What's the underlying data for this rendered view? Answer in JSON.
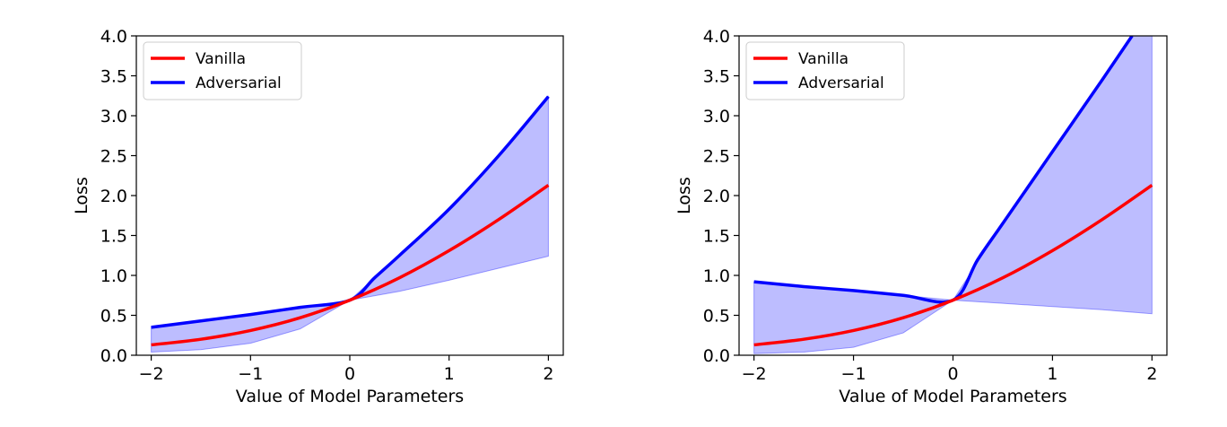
{
  "chart_data": [
    {
      "type": "line",
      "title": "",
      "xlabel": "Value of Model Parameters",
      "ylabel": "Loss",
      "xlim": [
        -2.15,
        2.15
      ],
      "ylim": [
        0.0,
        4.0
      ],
      "xticks": [
        -2,
        -1,
        0,
        1,
        2
      ],
      "xtick_labels": [
        "−2",
        "−1",
        "0",
        "1",
        "2"
      ],
      "yticks": [
        0.0,
        0.5,
        1.0,
        1.5,
        2.0,
        2.5,
        3.0,
        3.5,
        4.0
      ],
      "ytick_labels": [
        "0.0",
        "0.5",
        "1.0",
        "1.5",
        "2.0",
        "2.5",
        "3.0",
        "3.5",
        "4.0"
      ],
      "grid": false,
      "legend_position": "top-left",
      "series": [
        {
          "name": "Vanilla",
          "color": "#ff0000",
          "x": [
            -2.0,
            -1.5,
            -1.0,
            -0.5,
            0.0,
            0.5,
            1.0,
            1.5,
            2.0
          ],
          "y": [
            0.13,
            0.2,
            0.31,
            0.47,
            0.69,
            0.97,
            1.31,
            1.7,
            2.13
          ]
        },
        {
          "name": "Adversarial",
          "color": "#0000ff",
          "x": [
            -2.0,
            -1.5,
            -1.0,
            -0.5,
            0.0,
            0.25,
            0.5,
            1.0,
            1.5,
            2.0
          ],
          "y": [
            0.35,
            0.43,
            0.51,
            0.6,
            0.69,
            0.97,
            1.25,
            1.83,
            2.5,
            3.24
          ]
        }
      ],
      "band": {
        "color": "#0000ff",
        "opacity": 0.26,
        "x": [
          -2.0,
          -1.5,
          -1.0,
          -0.5,
          0.0,
          0.5,
          1.0,
          1.5,
          2.0
        ],
        "lower": [
          0.04,
          0.07,
          0.15,
          0.33,
          0.69,
          0.8,
          0.94,
          1.09,
          1.24
        ],
        "upper": [
          0.35,
          0.43,
          0.51,
          0.6,
          0.69,
          1.25,
          1.83,
          2.5,
          3.24
        ]
      }
    },
    {
      "type": "line",
      "title": "",
      "xlabel": "Value of Model Parameters",
      "ylabel": "Loss",
      "xlim": [
        -2.15,
        2.15
      ],
      "ylim": [
        0.0,
        4.0
      ],
      "xticks": [
        -2,
        -1,
        0,
        1,
        2
      ],
      "xtick_labels": [
        "−2",
        "−1",
        "0",
        "1",
        "2"
      ],
      "yticks": [
        0.0,
        0.5,
        1.0,
        1.5,
        2.0,
        2.5,
        3.0,
        3.5,
        4.0
      ],
      "ytick_labels": [
        "0.0",
        "0.5",
        "1.0",
        "1.5",
        "2.0",
        "2.5",
        "3.0",
        "3.5",
        "4.0"
      ],
      "grid": false,
      "legend_position": "top-left",
      "series": [
        {
          "name": "Vanilla",
          "color": "#ff0000",
          "x": [
            -2.0,
            -1.5,
            -1.0,
            -0.5,
            0.0,
            0.5,
            1.0,
            1.5,
            2.0
          ],
          "y": [
            0.13,
            0.2,
            0.31,
            0.47,
            0.69,
            0.97,
            1.31,
            1.7,
            2.13
          ]
        },
        {
          "name": "Adversarial",
          "color": "#0000ff",
          "x": [
            -2.0,
            -1.5,
            -1.0,
            -0.5,
            0.0,
            0.25,
            0.5,
            1.0,
            1.5,
            1.8
          ],
          "y": [
            0.92,
            0.86,
            0.81,
            0.75,
            0.69,
            1.2,
            1.65,
            2.55,
            3.45,
            4.0
          ]
        }
      ],
      "band": {
        "color": "#0000ff",
        "opacity": 0.26,
        "x": [
          -2.0,
          -1.5,
          -1.0,
          -0.5,
          0.0,
          0.5,
          1.0,
          1.5,
          1.8,
          2.0
        ],
        "lower": [
          0.02,
          0.04,
          0.1,
          0.28,
          0.69,
          0.65,
          0.61,
          0.57,
          0.54,
          0.52
        ],
        "upper": [
          0.92,
          0.86,
          0.81,
          0.75,
          0.69,
          1.65,
          2.55,
          3.45,
          4.0,
          4.0
        ]
      }
    }
  ]
}
